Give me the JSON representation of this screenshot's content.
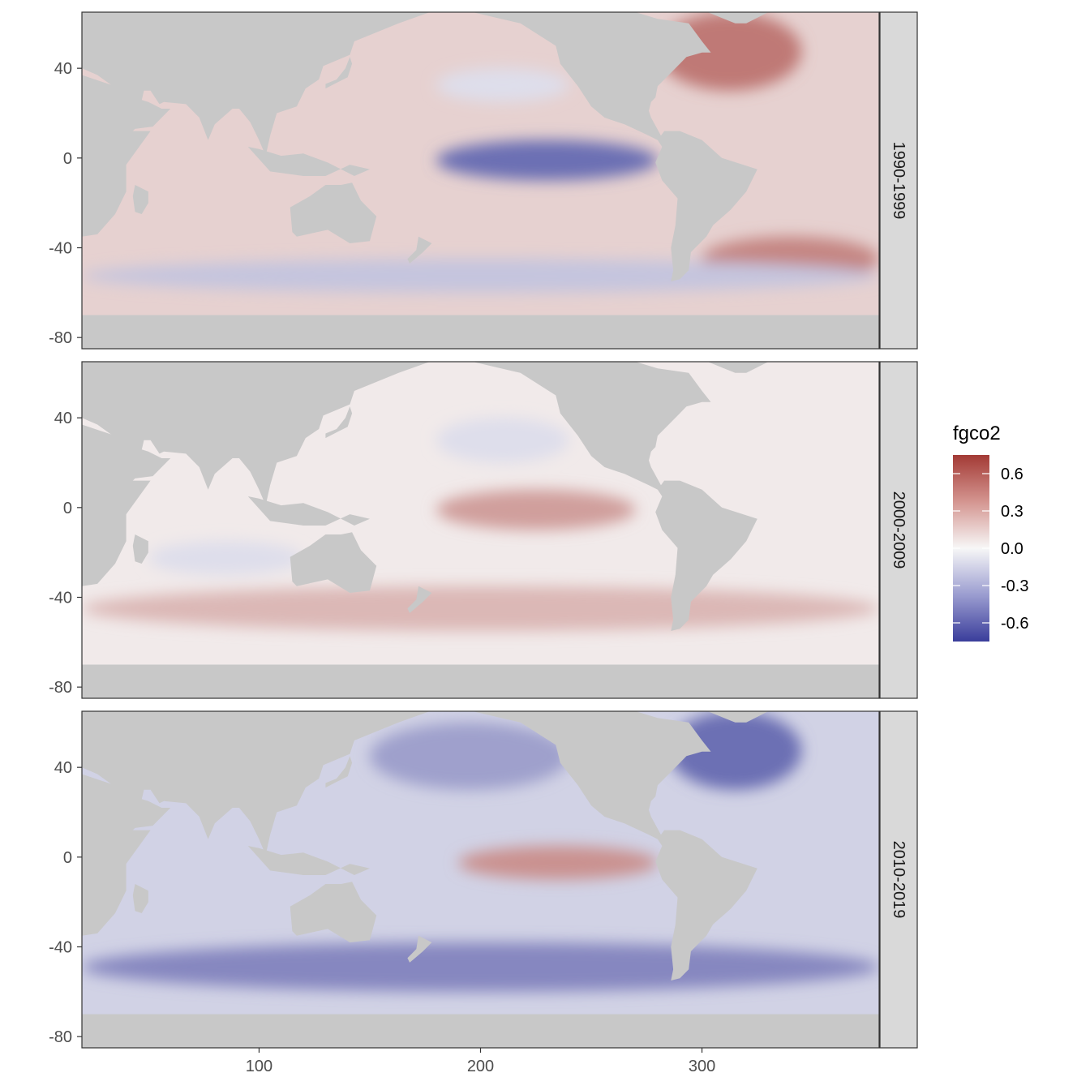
{
  "chart_data": {
    "type": "heatmap",
    "title": "",
    "xlabel": "",
    "ylabel": "",
    "xlim": [
      20,
      380
    ],
    "ylim": [
      -85,
      65
    ],
    "x_ticks": [
      100,
      200,
      300
    ],
    "x_tick_labels": [
      "100",
      "200",
      "300"
    ],
    "y_ticks": [
      40,
      0,
      -40,
      -80
    ],
    "y_tick_labels": [
      "40",
      "0",
      "-40",
      "-80"
    ],
    "facet_variable": "decade",
    "facets": [
      {
        "label": "1990-1999",
        "features": [
          {
            "region": "equatorial Pacific",
            "lon": [
              180,
              280
            ],
            "lat": [
              -10,
              8
            ],
            "value": -0.55
          },
          {
            "region": "North Atlantic",
            "lon": [
              280,
              345
            ],
            "lat": [
              30,
              65
            ],
            "value": 0.5
          },
          {
            "region": "South Atlantic sub-Antarctic",
            "lon": [
              300,
              380
            ],
            "lat": [
              -55,
              -35
            ],
            "value": 0.45
          },
          {
            "region": "Southern Ocean band",
            "lon": [
              20,
              380
            ],
            "lat": [
              -60,
              -45
            ],
            "value": -0.2
          },
          {
            "region": "North Pacific central",
            "lon": [
              180,
              240
            ],
            "lat": [
              25,
              40
            ],
            "value": -0.1
          },
          {
            "region": "background ocean",
            "value": 0.15
          }
        ]
      },
      {
        "label": "2000-2009",
        "features": [
          {
            "region": "equatorial Pacific",
            "lon": [
              180,
              270
            ],
            "lat": [
              -10,
              8
            ],
            "value": 0.35
          },
          {
            "region": "Southern Ocean band",
            "lon": [
              20,
              380
            ],
            "lat": [
              -55,
              -35
            ],
            "value": 0.25
          },
          {
            "region": "North Pacific central",
            "lon": [
              180,
              240
            ],
            "lat": [
              20,
              40
            ],
            "value": -0.1
          },
          {
            "region": "Indian Ocean subtropics",
            "lon": [
              50,
              120
            ],
            "lat": [
              -30,
              -15
            ],
            "value": -0.1
          },
          {
            "region": "background ocean",
            "value": 0.05
          }
        ]
      },
      {
        "label": "2010-2019",
        "features": [
          {
            "region": "equatorial Pacific",
            "lon": [
              190,
              280
            ],
            "lat": [
              -10,
              5
            ],
            "value": 0.4
          },
          {
            "region": "North Atlantic",
            "lon": [
              285,
              345
            ],
            "lat": [
              30,
              65
            ],
            "value": -0.55
          },
          {
            "region": "Southern Ocean band",
            "lon": [
              20,
              380
            ],
            "lat": [
              -60,
              -38
            ],
            "value": -0.45
          },
          {
            "region": "North Pacific",
            "lon": [
              150,
              240
            ],
            "lat": [
              30,
              60
            ],
            "value": -0.35
          },
          {
            "region": "background ocean",
            "value": -0.15
          }
        ]
      }
    ],
    "land_color": "#c8c8c8",
    "missing_color": "#ffffff",
    "colorbar": {
      "title": "fgco2",
      "limits": [
        -0.75,
        0.75
      ],
      "ticks": [
        0.6,
        0.3,
        0.0,
        -0.3,
        -0.6
      ],
      "tick_labels": [
        "0.6",
        "0.3",
        "0.0",
        "-0.3",
        "-0.6"
      ],
      "colors": {
        "low": "#3a3d9b",
        "mid": "#f7f7f7",
        "high": "#a33a35"
      }
    },
    "grid": false,
    "legend_position": "right"
  }
}
